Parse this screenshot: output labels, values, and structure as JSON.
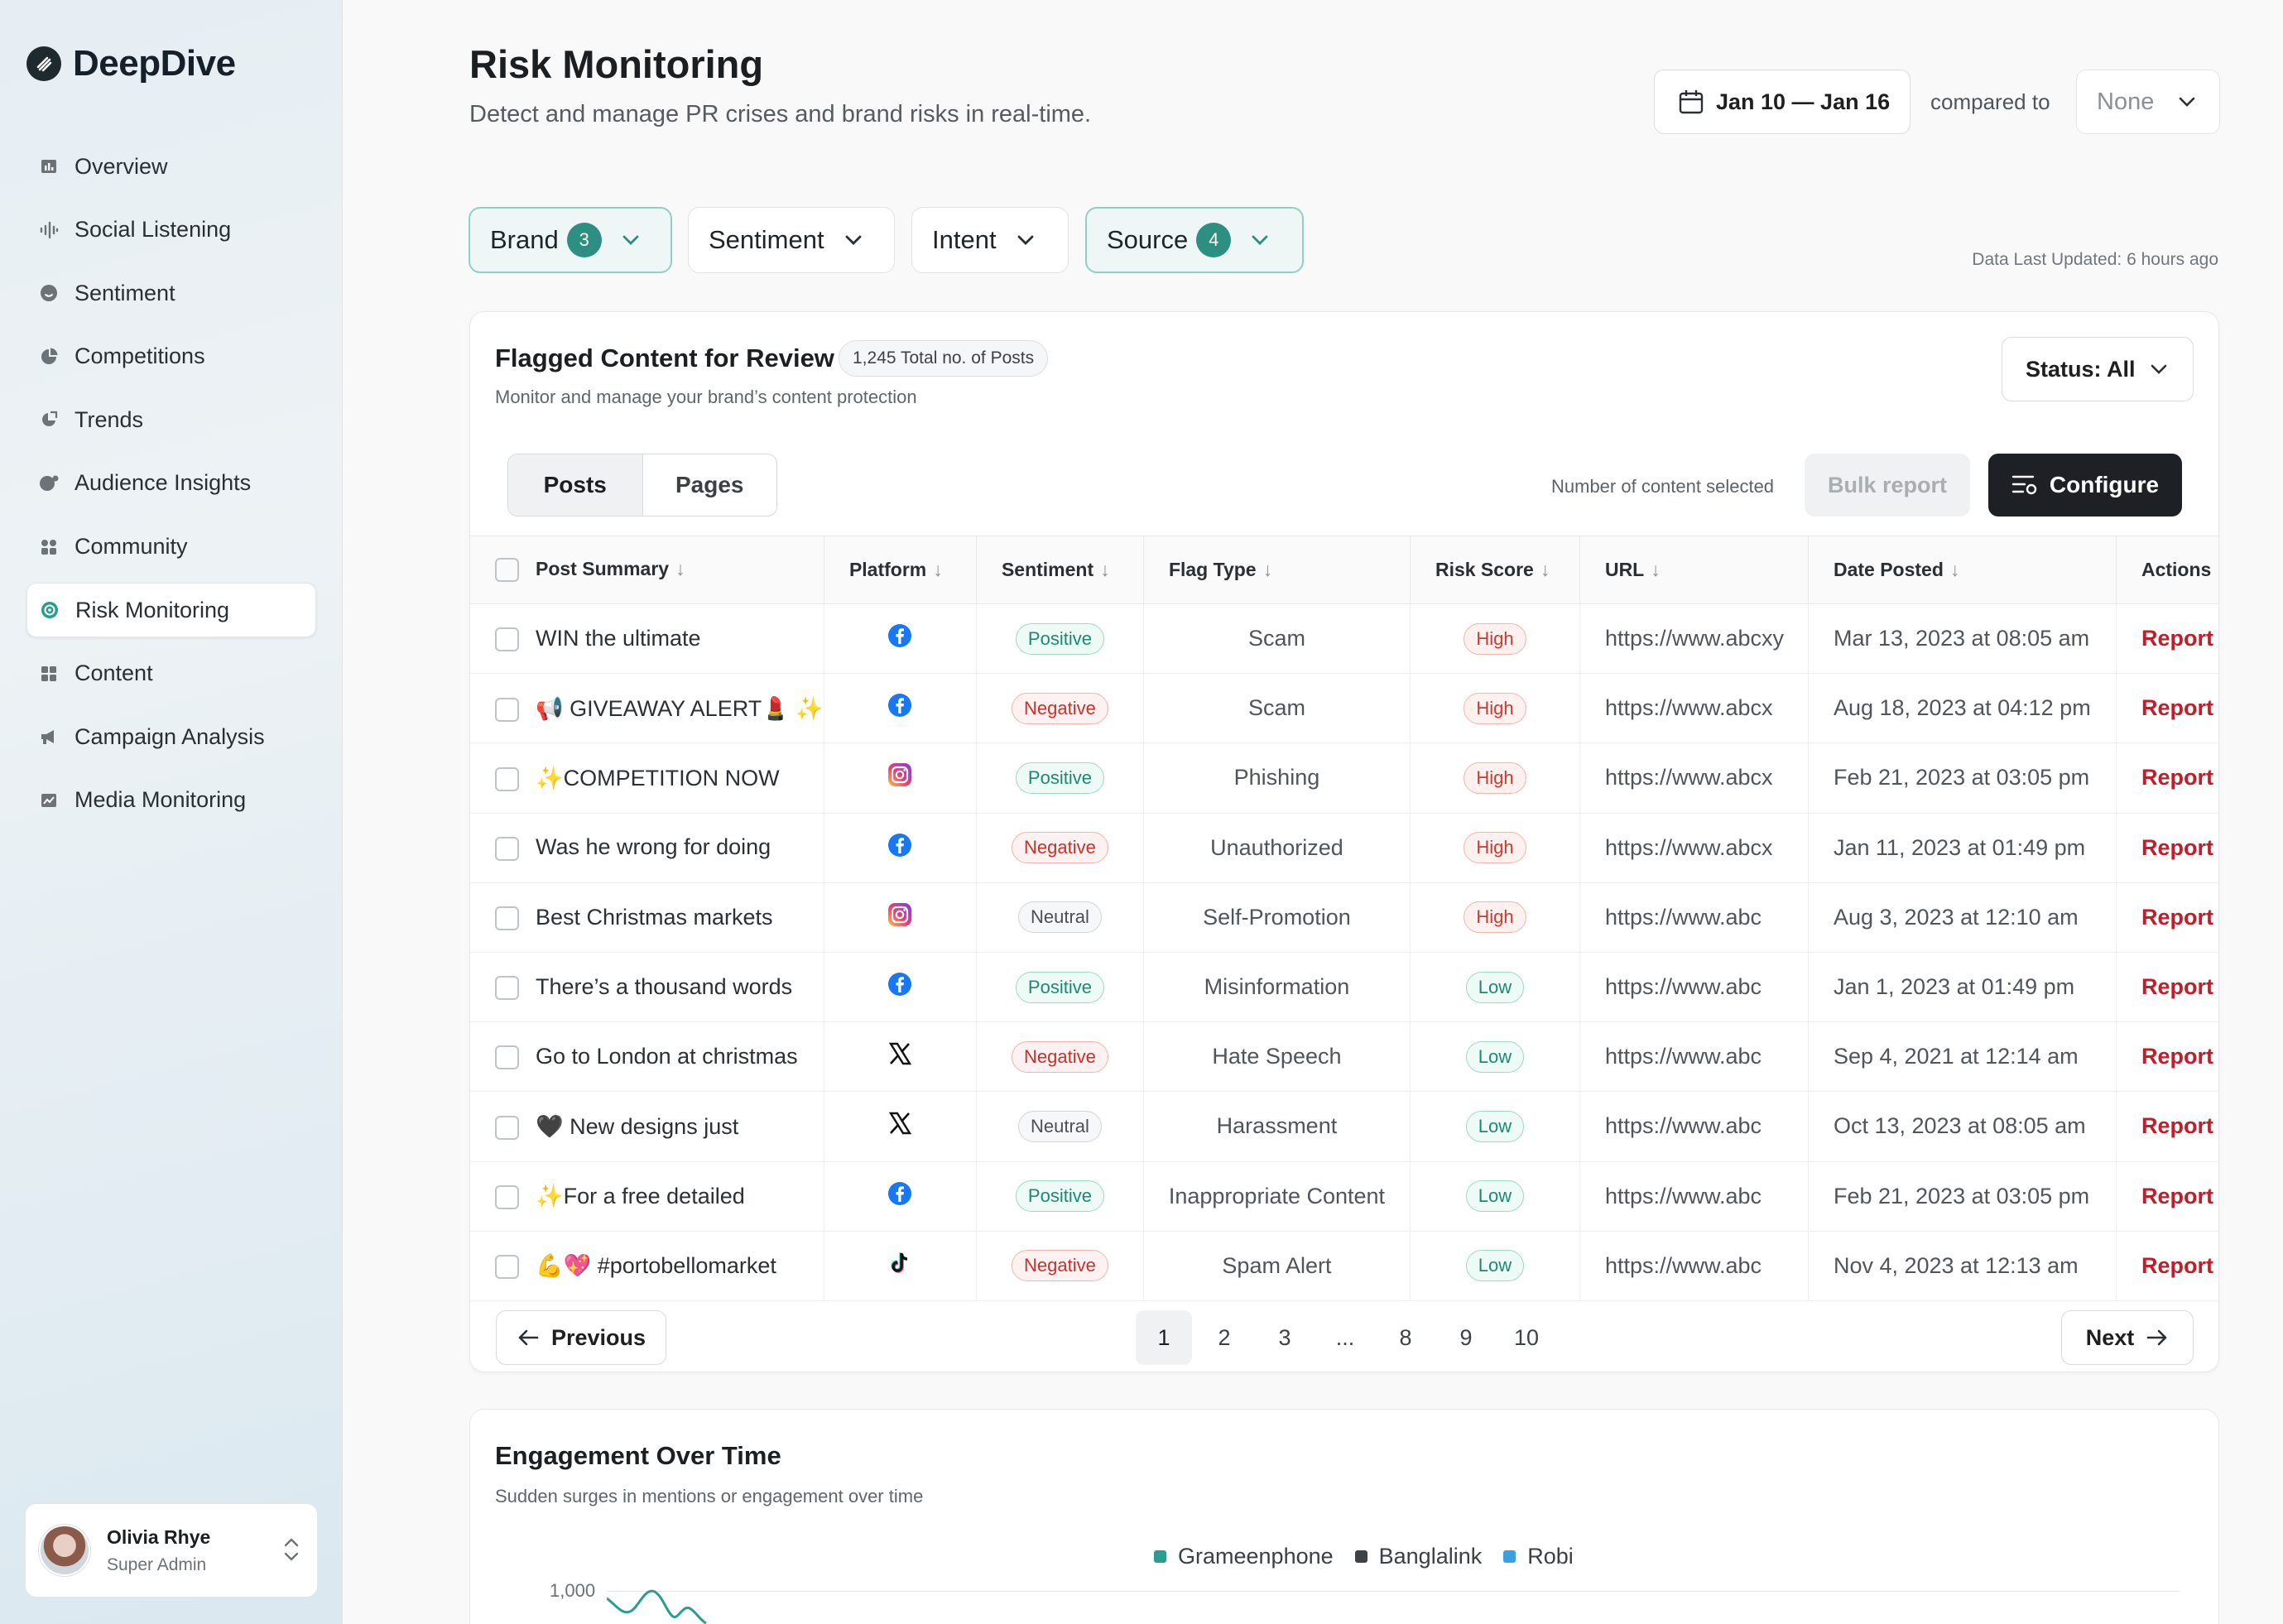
{
  "brand": {
    "name": "DeepDive"
  },
  "sidebar": {
    "items": [
      {
        "label": "Overview",
        "icon": "overview-icon"
      },
      {
        "label": "Social Listening",
        "icon": "waveform-icon"
      },
      {
        "label": "Sentiment",
        "icon": "smile-icon"
      },
      {
        "label": "Competitions",
        "icon": "pie-icon"
      },
      {
        "label": "Trends",
        "icon": "trend-icon"
      },
      {
        "label": "Audience Insights",
        "icon": "audience-icon"
      },
      {
        "label": "Community",
        "icon": "community-icon"
      },
      {
        "label": "Risk Monitoring",
        "icon": "risk-icon",
        "active": true
      },
      {
        "label": "Content",
        "icon": "grid-icon"
      },
      {
        "label": "Campaign Analysis",
        "icon": "megaphone-icon"
      },
      {
        "label": "Media Monitoring",
        "icon": "media-icon"
      }
    ]
  },
  "user": {
    "name": "Olivia Rhye",
    "role": "Super Admin"
  },
  "header": {
    "title": "Risk Monitoring",
    "subtitle": "Detect and manage PR crises and brand risks in real-time.",
    "date_range": "Jan 10 — Jan 16",
    "compared_label": "compared to",
    "compared_value": "None"
  },
  "filters": {
    "brand": {
      "label": "Brand",
      "count": "3"
    },
    "sentiment": {
      "label": "Sentiment"
    },
    "intent": {
      "label": "Intent"
    },
    "source": {
      "label": "Source",
      "count": "4"
    },
    "last_updated": "Data Last Updated: 6 hours ago"
  },
  "flagged": {
    "title": "Flagged Content for Review",
    "total": "1,245 Total no. of Posts",
    "subtitle": "Monitor and manage your brand’s content protection",
    "status": "Status: All",
    "tabs": [
      "Posts",
      "Pages"
    ],
    "selected_label": "Number of content selected",
    "bulk_label": "Bulk report",
    "configure_label": "Configure",
    "columns": [
      "Post Summary",
      "Platform",
      "Sentiment",
      "Flag Type",
      "Risk Score",
      "URL",
      "Date Posted",
      "Actions"
    ],
    "rows": [
      {
        "summary": "WIN the ultimate",
        "platform": "facebook",
        "sentiment": "Positive",
        "flag": "Scam",
        "risk": "High",
        "url": "https://www.abcxy",
        "date": "Mar 13, 2023 at 08:05 am",
        "action": "Report"
      },
      {
        "summary": "📢 GIVEAWAY ALERT💄 ✨",
        "platform": "facebook",
        "sentiment": "Negative",
        "flag": "Scam",
        "risk": "High",
        "url": "https://www.abcx",
        "date": "Aug 18, 2023 at 04:12 pm",
        "action": "Report"
      },
      {
        "summary": "✨COMPETITION NOW",
        "platform": "instagram",
        "sentiment": "Positive",
        "flag": "Phishing",
        "risk": "High",
        "url": "https://www.abcx",
        "date": "Feb 21, 2023 at 03:05 pm",
        "action": "Report"
      },
      {
        "summary": "Was he wrong for doing",
        "platform": "facebook",
        "sentiment": "Negative",
        "flag": "Unauthorized",
        "risk": "High",
        "url": "https://www.abcx",
        "date": "Jan 11, 2023 at 01:49 pm",
        "action": "Report"
      },
      {
        "summary": "Best Christmas markets",
        "platform": "instagram",
        "sentiment": "Neutral",
        "flag": "Self-Promotion",
        "risk": "High",
        "url": "https://www.abc",
        "date": "Aug 3, 2023 at 12:10 am",
        "action": "Report"
      },
      {
        "summary": "There’s a thousand words",
        "platform": "facebook",
        "sentiment": "Positive",
        "flag": "Misinformation",
        "risk": "Low",
        "url": "https://www.abc",
        "date": "Jan 1, 2023 at 01:49 pm",
        "action": "Report"
      },
      {
        "summary": "Go to London at christmas",
        "platform": "x",
        "sentiment": "Negative",
        "flag": "Hate Speech",
        "risk": "Low",
        "url": "https://www.abc",
        "date": "Sep 4, 2021 at 12:14 am",
        "action": "Report"
      },
      {
        "summary": "🖤 New designs just",
        "platform": "x",
        "sentiment": "Neutral",
        "flag": "Harassment",
        "risk": "Low",
        "url": "https://www.abc",
        "date": "Oct 13, 2023 at 08:05 am",
        "action": "Report"
      },
      {
        "summary": "✨For a free detailed",
        "platform": "facebook",
        "sentiment": "Positive",
        "flag": "Inappropriate Content",
        "risk": "Low",
        "url": "https://www.abc",
        "date": "Feb 21, 2023 at 03:05 pm",
        "action": "Report"
      },
      {
        "summary": "💪💖 #portobellomarket",
        "platform": "tiktok",
        "sentiment": "Negative",
        "flag": "Spam Alert",
        "risk": "Low",
        "url": "https://www.abc",
        "date": "Nov 4, 2023 at 12:13 am",
        "action": "Report"
      }
    ],
    "pagination": {
      "prev": "Previous",
      "next": "Next",
      "pages": [
        "1",
        "2",
        "3",
        "...",
        "8",
        "9",
        "10"
      ],
      "current": "1"
    }
  },
  "engagement": {
    "title": "Engagement Over Time",
    "subtitle": "Sudden surges in mentions or engagement over time",
    "legend": [
      {
        "name": "Grameenphone",
        "color": "#2a9d8f"
      },
      {
        "name": "Banglalink",
        "color": "#3d4247"
      },
      {
        "name": "Robi",
        "color": "#3aa0e0"
      }
    ],
    "y_tick": "1,000"
  }
}
